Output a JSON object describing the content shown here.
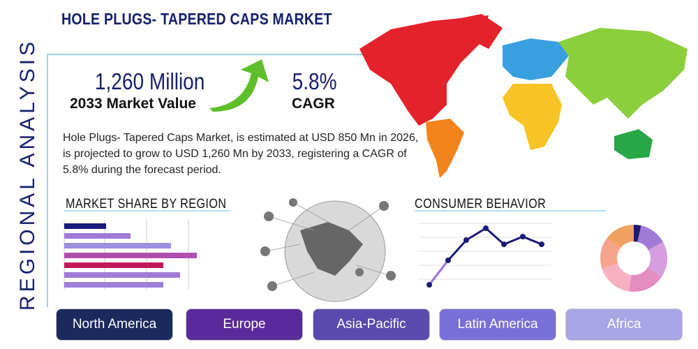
{
  "header": {
    "title": "HOLE PLUGS- TAPERED CAPS MARKET",
    "side_label": "REGIONAL ANALYSIS"
  },
  "stats": [
    {
      "value": "1,260 Million",
      "label": "2033 Market Value"
    },
    {
      "value": "5.8%",
      "label": "CAGR"
    }
  ],
  "description": "Hole Plugs- Tapered Caps Market, is estimated at USD 850 Mn in 2026, is projected to grow to USD 1,260 Mn by 2033, registering a CAGR of 5.8% during the forecast period.",
  "sections": {
    "market_share": "MARKET SHARE BY REGION",
    "consumer": "CONSUMER BEHAVIOR"
  },
  "regions": [
    "North America",
    "Europe",
    "Asia-Pacific",
    "Latin America",
    "Africa"
  ]
}
